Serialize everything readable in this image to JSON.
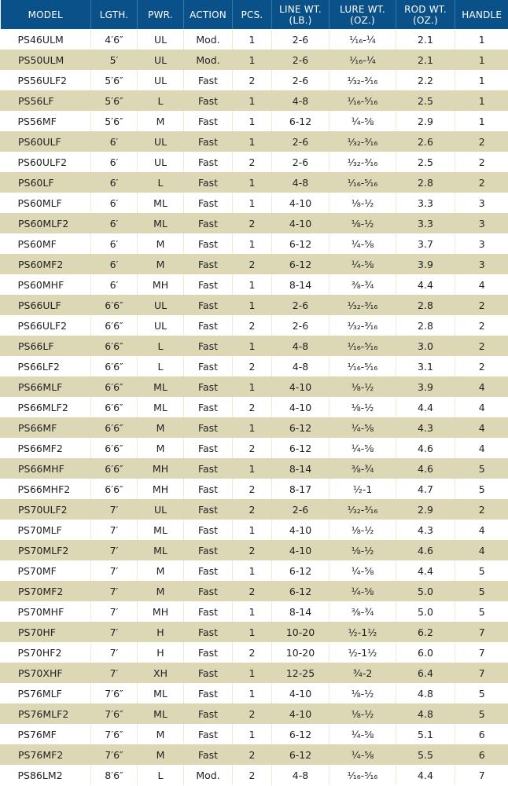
{
  "colors": {
    "header": "#0b5189",
    "stripe": "#dcd8b6"
  },
  "headers": [
    "MODEL",
    "LGTH.",
    "PWR.",
    "ACTION",
    "PCS.",
    "LINE WT.\n(LB.)",
    "LURE WT.\n(OZ.)",
    "ROD WT.\n(OZ.)",
    "HANDLE"
  ],
  "rows": [
    [
      "PS46ULM",
      "4′6″",
      "UL",
      "Mod.",
      "1",
      "2-6",
      "¹⁄₁₆-¼",
      "2.1",
      "1"
    ],
    [
      "PS50ULM",
      "5′",
      "UL",
      "Mod.",
      "1",
      "2-6",
      "¹⁄₁₆-¼",
      "2.1",
      "1"
    ],
    [
      "PS56ULF2",
      "5′6″",
      "UL",
      "Fast",
      "2",
      "2-6",
      "¹⁄₃₂-³⁄₁₆",
      "2.2",
      "1"
    ],
    [
      "PS56LF",
      "5′6″",
      "L",
      "Fast",
      "1",
      "4-8",
      "¹⁄₁₆-⁵⁄₁₆",
      "2.5",
      "1"
    ],
    [
      "PS56MF",
      "5′6″",
      "M",
      "Fast",
      "1",
      "6-12",
      "¼-⅝",
      "2.9",
      "1"
    ],
    [
      "PS60ULF",
      "6′",
      "UL",
      "Fast",
      "1",
      "2-6",
      "¹⁄₃₂-³⁄₁₆",
      "2.6",
      "2"
    ],
    [
      "PS60ULF2",
      "6′",
      "UL",
      "Fast",
      "2",
      "2-6",
      "¹⁄₃₂-³⁄₁₆",
      "2.5",
      "2"
    ],
    [
      "PS60LF",
      "6′",
      "L",
      "Fast",
      "1",
      "4-8",
      "¹⁄₁₆-⁵⁄₁₆",
      "2.8",
      "2"
    ],
    [
      "PS60MLF",
      "6′",
      "ML",
      "Fast",
      "1",
      "4-10",
      "⅛-½",
      "3.3",
      "3"
    ],
    [
      "PS60MLF2",
      "6′",
      "ML",
      "Fast",
      "2",
      "4-10",
      "⅛-½",
      "3.3",
      "3"
    ],
    [
      "PS60MF",
      "6′",
      "M",
      "Fast",
      "1",
      "6-12",
      "¼-⅝",
      "3.7",
      "3"
    ],
    [
      "PS60MF2",
      "6′",
      "M",
      "Fast",
      "2",
      "6-12",
      "¼-⅝",
      "3.9",
      "3"
    ],
    [
      "PS60MHF",
      "6′",
      "MH",
      "Fast",
      "1",
      "8-14",
      "⅜-¾",
      "4.4",
      "4"
    ],
    [
      "PS66ULF",
      "6′6″",
      "UL",
      "Fast",
      "1",
      "2-6",
      "¹⁄₃₂-³⁄₁₆",
      "2.8",
      "2"
    ],
    [
      "PS66ULF2",
      "6′6″",
      "UL",
      "Fast",
      "2",
      "2-6",
      "¹⁄₃₂-³⁄₁₆",
      "2.8",
      "2"
    ],
    [
      "PS66LF",
      "6′6″",
      "L",
      "Fast",
      "1",
      "4-8",
      "¹⁄₁₆-⁵⁄₁₆",
      "3.0",
      "2"
    ],
    [
      "PS66LF2",
      "6′6″",
      "L",
      "Fast",
      "2",
      "4-8",
      "¹⁄₁₆-⁵⁄₁₆",
      "3.1",
      "2"
    ],
    [
      "PS66MLF",
      "6′6″",
      "ML",
      "Fast",
      "1",
      "4-10",
      "⅛-½",
      "3.9",
      "4"
    ],
    [
      "PS66MLF2",
      "6′6″",
      "ML",
      "Fast",
      "2",
      "4-10",
      "⅛-½",
      "4.4",
      "4"
    ],
    [
      "PS66MF",
      "6′6″",
      "M",
      "Fast",
      "1",
      "6-12",
      "¼-⅝",
      "4.3",
      "4"
    ],
    [
      "PS66MF2",
      "6′6″",
      "M",
      "Fast",
      "2",
      "6-12",
      "¼-⅝",
      "4.6",
      "4"
    ],
    [
      "PS66MHF",
      "6′6″",
      "MH",
      "Fast",
      "1",
      "8-14",
      "⅜-¾",
      "4.6",
      "5"
    ],
    [
      "PS66MHF2",
      "6′6″",
      "MH",
      "Fast",
      "2",
      "8-17",
      "½-1",
      "4.7",
      "5"
    ],
    [
      "PS70ULF2",
      "7′",
      "UL",
      "Fast",
      "2",
      "2-6",
      "¹⁄₃₂-³⁄₁₆",
      "2.9",
      "2"
    ],
    [
      "PS70MLF",
      "7′",
      "ML",
      "Fast",
      "1",
      "4-10",
      "⅛-½",
      "4.3",
      "4"
    ],
    [
      "PS70MLF2",
      "7′",
      "ML",
      "Fast",
      "2",
      "4-10",
      "⅛-½",
      "4.6",
      "4"
    ],
    [
      "PS70MF",
      "7′",
      "M",
      "Fast",
      "1",
      "6-12",
      "¼-⅝",
      "4.4",
      "5"
    ],
    [
      "PS70MF2",
      "7′",
      "M",
      "Fast",
      "2",
      "6-12",
      "¼-⅝",
      "5.0",
      "5"
    ],
    [
      "PS70MHF",
      "7′",
      "MH",
      "Fast",
      "1",
      "8-14",
      "⅜-¾",
      "5.0",
      "5"
    ],
    [
      "PS70HF",
      "7′",
      "H",
      "Fast",
      "1",
      "10-20",
      "½-1½",
      "6.2",
      "7"
    ],
    [
      "PS70HF2",
      "7′",
      "H",
      "Fast",
      "2",
      "10-20",
      "½-1½",
      "6.0",
      "7"
    ],
    [
      "PS70XHF",
      "7′",
      "XH",
      "Fast",
      "1",
      "12-25",
      "¾-2",
      "6.4",
      "7"
    ],
    [
      "PS76MLF",
      "7′6″",
      "ML",
      "Fast",
      "1",
      "4-10",
      "⅛-½",
      "4.8",
      "5"
    ],
    [
      "PS76MLF2",
      "7′6″",
      "ML",
      "Fast",
      "2",
      "4-10",
      "⅛-½",
      "4.8",
      "5"
    ],
    [
      "PS76MF",
      "7′6″",
      "M",
      "Fast",
      "1",
      "6-12",
      "¼-⅝",
      "5.1",
      "6"
    ],
    [
      "PS76MF2",
      "7′6″",
      "M",
      "Fast",
      "2",
      "6-12",
      "¼-⅝",
      "5.5",
      "6"
    ],
    [
      "PS86LM2",
      "8′6″",
      "L",
      "Mod.",
      "2",
      "4-8",
      "¹⁄₁₆-⁵⁄₁₆",
      "4.4",
      "7"
    ]
  ]
}
